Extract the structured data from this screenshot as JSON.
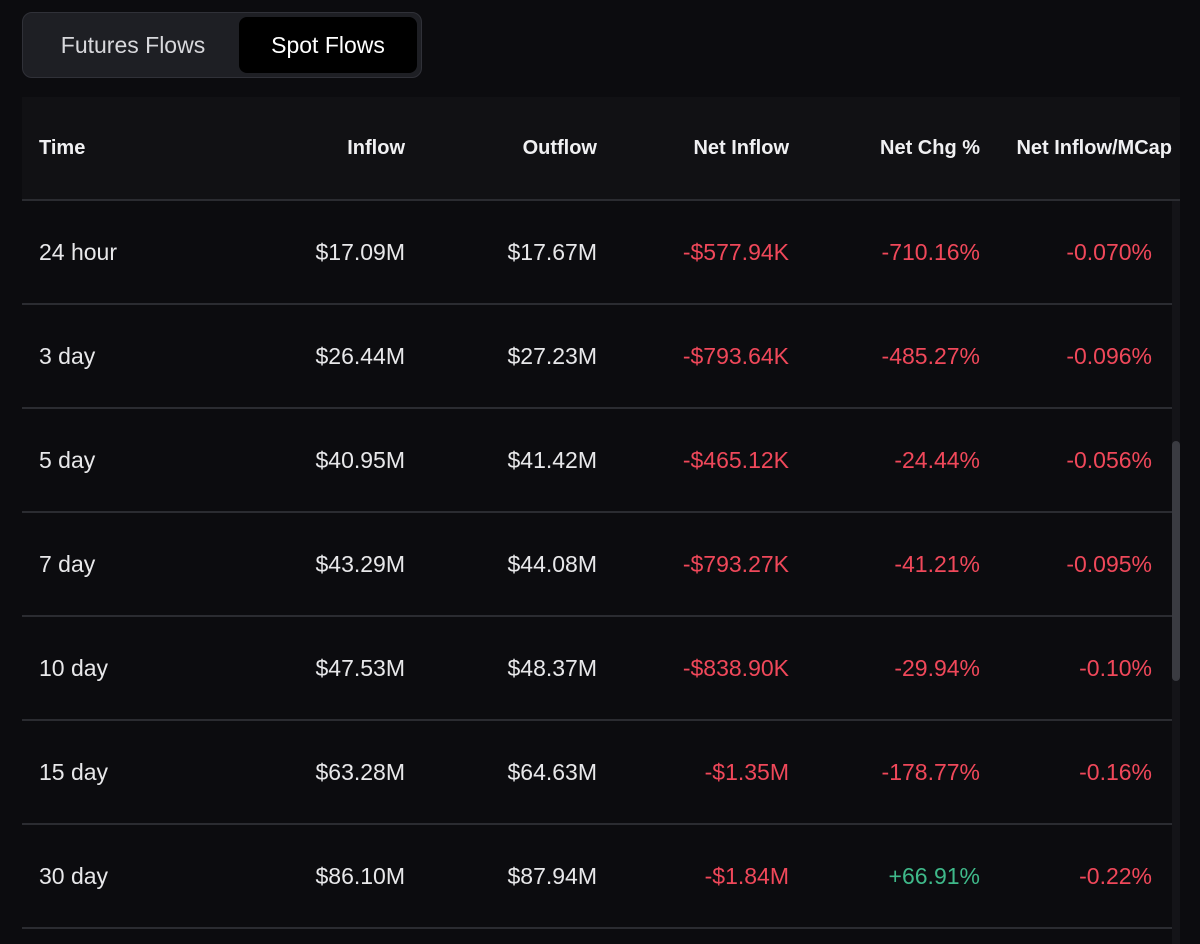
{
  "tabs": [
    {
      "label": "Futures Flows",
      "active": false
    },
    {
      "label": "Spot Flows",
      "active": true
    }
  ],
  "table": {
    "columns": [
      "Time",
      "Inflow",
      "Outflow",
      "Net Inflow",
      "Net Chg %",
      "Net Inflow/MCap"
    ],
    "rows": [
      {
        "time": "24 hour",
        "inflow": "$17.09M",
        "outflow": "$17.67M",
        "net_inflow": "-$577.94K",
        "net_chg": "-710.16%",
        "net_mcap": "-0.070%"
      },
      {
        "time": "3 day",
        "inflow": "$26.44M",
        "outflow": "$27.23M",
        "net_inflow": "-$793.64K",
        "net_chg": "-485.27%",
        "net_mcap": "-0.096%"
      },
      {
        "time": "5 day",
        "inflow": "$40.95M",
        "outflow": "$41.42M",
        "net_inflow": "-$465.12K",
        "net_chg": "-24.44%",
        "net_mcap": "-0.056%"
      },
      {
        "time": "7 day",
        "inflow": "$43.29M",
        "outflow": "$44.08M",
        "net_inflow": "-$793.27K",
        "net_chg": "-41.21%",
        "net_mcap": "-0.095%"
      },
      {
        "time": "10 day",
        "inflow": "$47.53M",
        "outflow": "$48.37M",
        "net_inflow": "-$838.90K",
        "net_chg": "-29.94%",
        "net_mcap": "-0.10%"
      },
      {
        "time": "15 day",
        "inflow": "$63.28M",
        "outflow": "$64.63M",
        "net_inflow": "-$1.35M",
        "net_chg": "-178.77%",
        "net_mcap": "-0.16%"
      },
      {
        "time": "30 day",
        "inflow": "$86.10M",
        "outflow": "$87.94M",
        "net_inflow": "-$1.84M",
        "net_chg": "+66.91%",
        "net_mcap": "-0.22%"
      }
    ]
  },
  "colors": {
    "negative": "#f0485a",
    "positive": "#3fb98a",
    "background": "#0c0c0f"
  }
}
